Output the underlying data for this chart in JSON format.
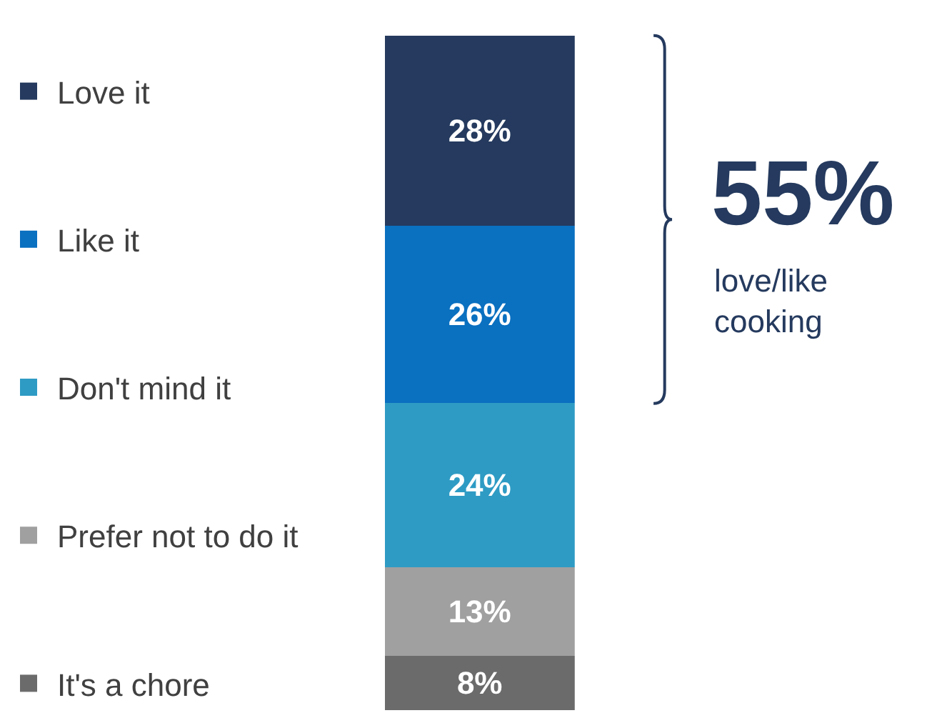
{
  "chart_data": {
    "type": "bar",
    "stacked": true,
    "categories": [
      null
    ],
    "legend": "left",
    "tick_labels": false,
    "series": [
      {
        "name": "It's a chore",
        "color": "#6b6b6b",
        "values": [
          8
        ],
        "value_labels": [
          "8%"
        ]
      },
      {
        "name": "Prefer not to do it",
        "color": "#a0a0a0",
        "values": [
          13
        ],
        "value_labels": [
          "13%"
        ]
      },
      {
        "name": "Don't mind it",
        "color": "#2e9bc4",
        "values": [
          24
        ],
        "value_labels": [
          "24%"
        ]
      },
      {
        "name": "Like it",
        "color": "#0a70c0",
        "values": [
          26
        ],
        "value_labels": [
          "26%"
        ]
      },
      {
        "name": "Love it",
        "color": "#253a5e",
        "values": [
          28
        ],
        "value_labels": [
          "28%"
        ]
      }
    ],
    "annotations": [
      "55%",
      "love/like\ncooking"
    ]
  }
}
